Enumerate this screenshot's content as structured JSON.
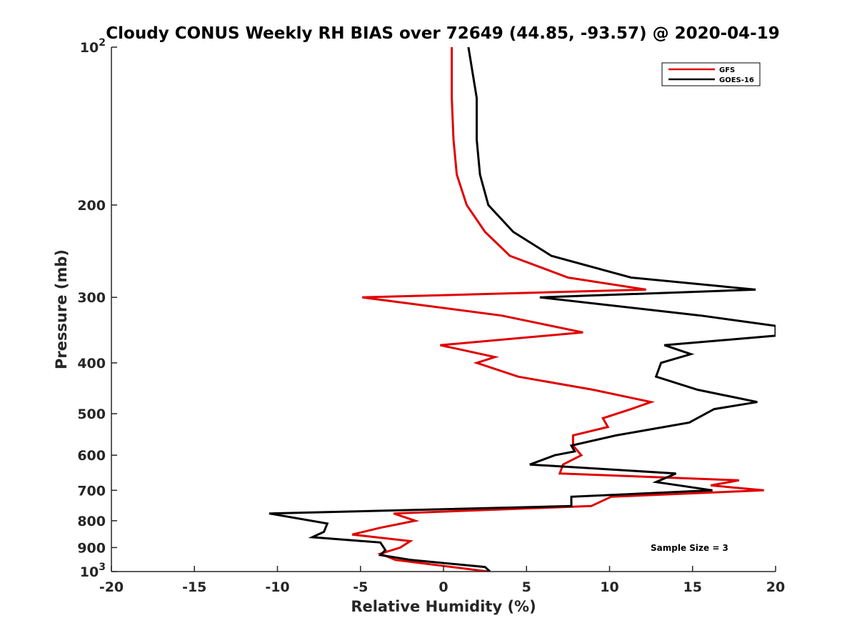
{
  "chart_data": {
    "type": "line",
    "title": "Cloudy CONUS Weekly RH BIAS over 72649 (44.85, -93.57) @ 2020-04-19",
    "xlabel": "Relative Humidity (%)",
    "ylabel": "Pressure (mb)",
    "xlim": [
      -20,
      20
    ],
    "ylim": [
      100,
      1000
    ],
    "y_scale": "log",
    "y_reversed": true,
    "x_ticks": [
      -20,
      -15,
      -10,
      -5,
      0,
      5,
      10,
      15,
      20
    ],
    "x_tick_labels": [
      "-20",
      "-15",
      "-10",
      "-5",
      "0",
      "5",
      "10",
      "15",
      "20"
    ],
    "y_ticks": [
      100,
      200,
      300,
      400,
      500,
      600,
      700,
      800,
      900,
      1000
    ],
    "y_tick_labels": [
      {
        "base": "10",
        "exp": "2"
      },
      {
        "base": "200",
        "exp": ""
      },
      {
        "base": "300",
        "exp": ""
      },
      {
        "base": "400",
        "exp": ""
      },
      {
        "base": "500",
        "exp": ""
      },
      {
        "base": "600",
        "exp": ""
      },
      {
        "base": "700",
        "exp": ""
      },
      {
        "base": "800",
        "exp": ""
      },
      {
        "base": "900",
        "exp": ""
      },
      {
        "base": "10",
        "exp": "3"
      }
    ],
    "grid": false,
    "legend_position": "top-right",
    "annotation": "Sample Size = 3",
    "series": [
      {
        "name": "GFS",
        "color": "#e00000",
        "points": [
          [
            0.5,
            100
          ],
          [
            0.5,
            125
          ],
          [
            0.6,
            150
          ],
          [
            0.8,
            175
          ],
          [
            1.4,
            200
          ],
          [
            2.5,
            225
          ],
          [
            4.0,
            250
          ],
          [
            7.5,
            275
          ],
          [
            12.2,
            290
          ],
          [
            -4.9,
            300
          ],
          [
            3.5,
            325
          ],
          [
            8.4,
            350
          ],
          [
            -0.2,
            370
          ],
          [
            3.1,
            390
          ],
          [
            2.0,
            400
          ],
          [
            4.5,
            425
          ],
          [
            9.0,
            450
          ],
          [
            12.5,
            475
          ],
          [
            11.3,
            490
          ],
          [
            9.6,
            510
          ],
          [
            9.9,
            530
          ],
          [
            7.8,
            550
          ],
          [
            7.8,
            575
          ],
          [
            8.3,
            600
          ],
          [
            7.2,
            625
          ],
          [
            7.0,
            650
          ],
          [
            17.8,
            670
          ],
          [
            16.1,
            685
          ],
          [
            19.3,
            700
          ],
          [
            10.1,
            720
          ],
          [
            8.9,
            750
          ],
          [
            -3.0,
            775
          ],
          [
            -1.7,
            800
          ],
          [
            -3.8,
            825
          ],
          [
            -5.5,
            850
          ],
          [
            -2.0,
            875
          ],
          [
            -2.6,
            900
          ],
          [
            -3.8,
            925
          ],
          [
            -2.9,
            950
          ],
          [
            2.7,
            1000
          ]
        ]
      },
      {
        "name": "GOES-16",
        "color": "#000000",
        "points": [
          [
            1.5,
            100
          ],
          [
            2.0,
            125
          ],
          [
            2.0,
            150
          ],
          [
            2.2,
            175
          ],
          [
            2.7,
            200
          ],
          [
            4.2,
            225
          ],
          [
            6.5,
            250
          ],
          [
            11.3,
            275
          ],
          [
            18.8,
            290
          ],
          [
            5.8,
            300
          ],
          [
            15.5,
            325
          ],
          [
            20.0,
            340
          ],
          [
            20.0,
            355
          ],
          [
            13.3,
            370
          ],
          [
            14.9,
            385
          ],
          [
            13.1,
            400
          ],
          [
            12.8,
            425
          ],
          [
            15.3,
            450
          ],
          [
            18.9,
            475
          ],
          [
            16.3,
            490
          ],
          [
            14.8,
            520
          ],
          [
            10.4,
            550
          ],
          [
            7.7,
            575
          ],
          [
            7.9,
            590
          ],
          [
            6.7,
            600
          ],
          [
            5.2,
            625
          ],
          [
            14.0,
            650
          ],
          [
            12.8,
            675
          ],
          [
            16.2,
            700
          ],
          [
            7.7,
            720
          ],
          [
            7.7,
            750
          ],
          [
            -10.5,
            775
          ],
          [
            -7.0,
            810
          ],
          [
            -7.2,
            840
          ],
          [
            -7.9,
            860
          ],
          [
            -3.8,
            880
          ],
          [
            -3.5,
            910
          ],
          [
            -3.8,
            930
          ],
          [
            -2.0,
            950
          ],
          [
            2.5,
            980
          ],
          [
            2.8,
            1000
          ]
        ]
      }
    ]
  }
}
